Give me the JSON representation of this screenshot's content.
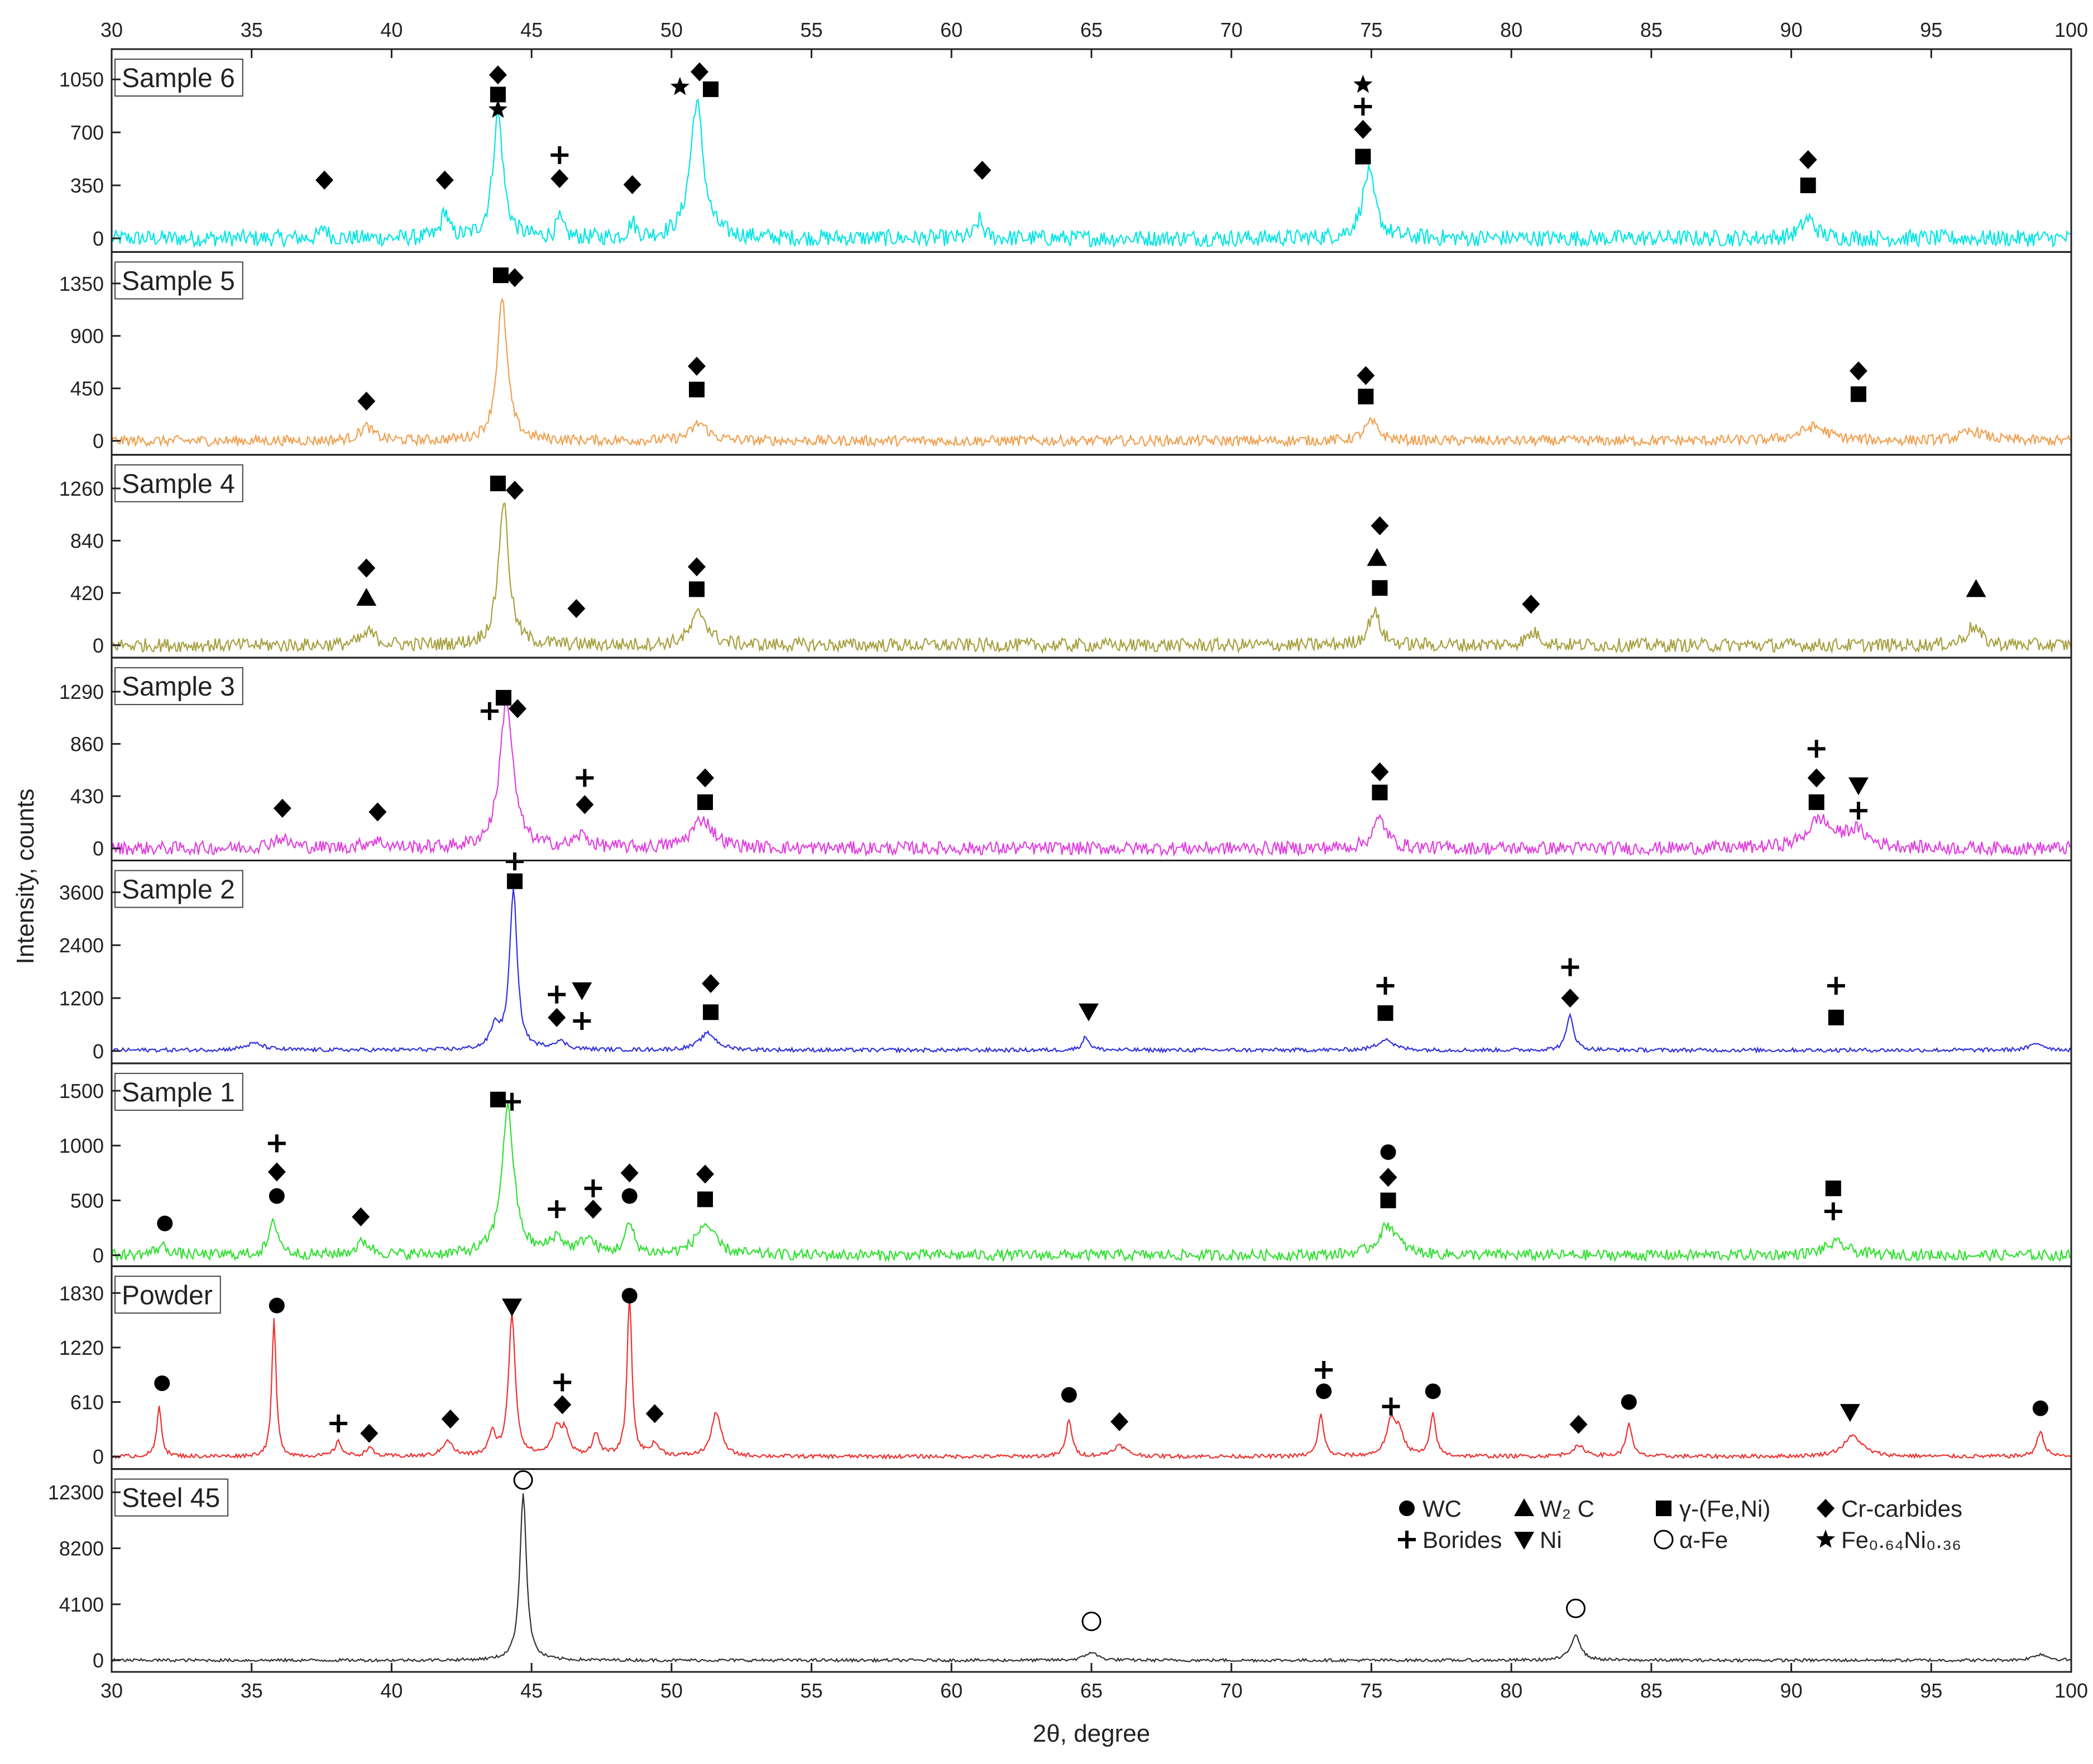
{
  "chart_data": {
    "type": "line",
    "xlabel": "2θ, degree",
    "ylabel": "Intensity, counts",
    "xlim": [
      30,
      100
    ],
    "xticks": [
      30,
      35,
      40,
      45,
      50,
      55,
      60,
      65,
      70,
      75,
      80,
      85,
      90,
      95,
      100
    ],
    "grid": false,
    "legend_location": "bottom panel, top-right",
    "legend": [
      {
        "symbol": "circle-filled",
        "label": "WC"
      },
      {
        "symbol": "triangle-up",
        "label": "W₂ C"
      },
      {
        "symbol": "square",
        "label": "γ-(Fe,Ni)"
      },
      {
        "symbol": "diamond",
        "label": "Cr-carbides"
      },
      {
        "symbol": "plus",
        "label": "Borides"
      },
      {
        "symbol": "triangle-down",
        "label": "Ni"
      },
      {
        "symbol": "circle-open",
        "label": "α-Fe"
      },
      {
        "symbol": "star",
        "label": "Fe₀.₆₄Ni₀.₃₆"
      }
    ],
    "panels": [
      {
        "name": "Sample 6",
        "color": "#00e5e5",
        "ylim": [
          -90,
          1250
        ],
        "yticks": [
          0,
          350,
          700,
          1050
        ],
        "noise": 55,
        "baseline": 0,
        "peaks": [
          [
            37.6,
            80,
            0.12
          ],
          [
            41.9,
            180,
            0.14
          ],
          [
            43.8,
            820,
            0.22
          ],
          [
            46.0,
            120,
            0.15
          ],
          [
            48.6,
            100,
            0.14
          ],
          [
            50.9,
            900,
            0.28
          ],
          [
            61.0,
            120,
            0.15
          ],
          [
            74.9,
            430,
            0.28
          ],
          [
            90.6,
            130,
            0.3
          ]
        ],
        "markers": [
          [
            37.6,
            385,
            "diamond"
          ],
          [
            41.9,
            385,
            "diamond"
          ],
          [
            46.0,
            395,
            "diamond"
          ],
          [
            46.0,
            550,
            "plus"
          ],
          [
            48.6,
            355,
            "diamond"
          ],
          [
            43.8,
            1080,
            "diamond"
          ],
          [
            43.8,
            950,
            "square"
          ],
          [
            43.8,
            850,
            "star"
          ],
          [
            50.3,
            1000,
            "star"
          ],
          [
            51.0,
            1100,
            "diamond"
          ],
          [
            51.4,
            985,
            "square"
          ],
          [
            61.1,
            450,
            "diamond"
          ],
          [
            74.7,
            1015,
            "star"
          ],
          [
            74.7,
            870,
            "plus"
          ],
          [
            74.7,
            720,
            "diamond"
          ],
          [
            74.7,
            540,
            "square"
          ],
          [
            90.6,
            520,
            "diamond"
          ],
          [
            90.6,
            350,
            "square"
          ]
        ]
      },
      {
        "name": "Sample 5",
        "color": "#f0a050",
        "ylim": [
          -120,
          1620
        ],
        "yticks": [
          0,
          450,
          900,
          1350
        ],
        "noise": 45,
        "baseline": 0,
        "peaks": [
          [
            39.1,
            120,
            0.3
          ],
          [
            43.95,
            1200,
            0.22
          ],
          [
            51.0,
            150,
            0.35
          ],
          [
            75.0,
            160,
            0.3
          ],
          [
            90.8,
            120,
            0.6
          ],
          [
            96.5,
            80,
            0.5
          ]
        ],
        "markers": [
          [
            39.1,
            340,
            "diamond"
          ],
          [
            43.9,
            1420,
            "square"
          ],
          [
            44.4,
            1400,
            "diamond"
          ],
          [
            50.9,
            640,
            "diamond"
          ],
          [
            50.9,
            440,
            "square"
          ],
          [
            74.8,
            560,
            "diamond"
          ],
          [
            74.8,
            380,
            "square"
          ],
          [
            92.4,
            600,
            "diamond"
          ],
          [
            92.4,
            400,
            "square"
          ]
        ]
      },
      {
        "name": "Sample 4",
        "color": "#a8a040",
        "ylim": [
          -100,
          1530
        ],
        "yticks": [
          0,
          420,
          840,
          1260
        ],
        "noise": 55,
        "baseline": 0,
        "peaks": [
          [
            39.2,
            100,
            0.3
          ],
          [
            44.0,
            1160,
            0.22
          ],
          [
            51.0,
            260,
            0.35
          ],
          [
            75.1,
            270,
            0.25
          ],
          [
            80.8,
            100,
            0.3
          ],
          [
            96.5,
            150,
            0.3
          ]
        ],
        "markers": [
          [
            39.1,
            620,
            "diamond"
          ],
          [
            39.1,
            380,
            "triangle-up"
          ],
          [
            43.8,
            1300,
            "square"
          ],
          [
            44.4,
            1245,
            "diamond"
          ],
          [
            46.6,
            295,
            "diamond"
          ],
          [
            50.9,
            630,
            "diamond"
          ],
          [
            50.9,
            450,
            "square"
          ],
          [
            75.3,
            960,
            "diamond"
          ],
          [
            75.2,
            700,
            "triangle-up"
          ],
          [
            75.3,
            460,
            "square"
          ],
          [
            80.7,
            330,
            "diamond"
          ],
          [
            96.6,
            450,
            "triangle-up"
          ]
        ]
      },
      {
        "name": "Sample 3",
        "color": "#e040e0",
        "ylim": [
          -100,
          1570
        ],
        "yticks": [
          0,
          430,
          860,
          1290
        ],
        "noise": 55,
        "baseline": 0,
        "peaks": [
          [
            36.0,
            80,
            0.4
          ],
          [
            39.4,
            60,
            0.4
          ],
          [
            44.1,
            1220,
            0.28
          ],
          [
            46.8,
            100,
            0.3
          ],
          [
            51.1,
            240,
            0.45
          ],
          [
            75.3,
            240,
            0.3
          ],
          [
            91.0,
            230,
            0.5
          ],
          [
            92.3,
            140,
            0.5
          ]
        ],
        "markers": [
          [
            36.1,
            330,
            "diamond"
          ],
          [
            39.5,
            300,
            "diamond"
          ],
          [
            43.5,
            1130,
            "plus"
          ],
          [
            44.0,
            1240,
            "square"
          ],
          [
            44.5,
            1150,
            "diamond"
          ],
          [
            46.9,
            580,
            "plus"
          ],
          [
            46.9,
            360,
            "diamond"
          ],
          [
            51.2,
            580,
            "diamond"
          ],
          [
            51.2,
            380,
            "square"
          ],
          [
            75.3,
            630,
            "diamond"
          ],
          [
            75.3,
            460,
            "square"
          ],
          [
            90.9,
            820,
            "plus"
          ],
          [
            90.9,
            580,
            "diamond"
          ],
          [
            90.9,
            380,
            "square"
          ],
          [
            92.4,
            520,
            "triangle-down"
          ],
          [
            92.4,
            310,
            "plus"
          ]
        ]
      },
      {
        "name": "Sample 2",
        "color": "#3030e0",
        "ylim": [
          -280,
          4320
        ],
        "yticks": [
          0,
          1200,
          2400,
          3600
        ],
        "noise": 45,
        "baseline": 20,
        "peaks": [
          [
            35.1,
            150,
            0.4
          ],
          [
            43.7,
            500,
            0.2
          ],
          [
            44.35,
            3600,
            0.16
          ],
          [
            46.0,
            180,
            0.3
          ],
          [
            51.3,
            380,
            0.35
          ],
          [
            64.8,
            300,
            0.15
          ],
          [
            75.5,
            260,
            0.3
          ],
          [
            82.1,
            800,
            0.15
          ],
          [
            98.8,
            150,
            0.3
          ]
        ],
        "markers": [
          [
            44.4,
            4300,
            "plus"
          ],
          [
            44.4,
            3850,
            "square"
          ],
          [
            45.9,
            1280,
            "plus"
          ],
          [
            45.9,
            760,
            "diamond"
          ],
          [
            46.8,
            1380,
            "triangle-down"
          ],
          [
            46.8,
            680,
            "plus"
          ],
          [
            51.4,
            1530,
            "diamond"
          ],
          [
            51.4,
            880,
            "square"
          ],
          [
            64.9,
            900,
            "triangle-down"
          ],
          [
            75.5,
            1480,
            "plus"
          ],
          [
            75.5,
            860,
            "square"
          ],
          [
            82.1,
            1900,
            "plus"
          ],
          [
            82.1,
            1200,
            "diamond"
          ],
          [
            91.6,
            1480,
            "plus"
          ],
          [
            91.6,
            760,
            "square"
          ]
        ]
      },
      {
        "name": "Sample 1",
        "color": "#30e030",
        "ylim": [
          -100,
          1750
        ],
        "yticks": [
          0,
          500,
          1000,
          1500
        ],
        "noise": 50,
        "baseline": 0,
        "peaks": [
          [
            31.8,
            80,
            0.3
          ],
          [
            35.8,
            300,
            0.2
          ],
          [
            39.0,
            120,
            0.3
          ],
          [
            44.15,
            1340,
            0.26
          ],
          [
            45.9,
            150,
            0.3
          ],
          [
            47.0,
            140,
            0.3
          ],
          [
            48.5,
            270,
            0.2
          ],
          [
            51.2,
            280,
            0.4
          ],
          [
            75.6,
            280,
            0.4
          ],
          [
            91.6,
            110,
            0.5
          ]
        ],
        "markers": [
          [
            31.9,
            290,
            "circle-filled"
          ],
          [
            35.9,
            1020,
            "plus"
          ],
          [
            35.9,
            760,
            "diamond"
          ],
          [
            35.9,
            540,
            "circle-filled"
          ],
          [
            38.9,
            350,
            "diamond"
          ],
          [
            43.8,
            1420,
            "square"
          ],
          [
            44.3,
            1400,
            "plus"
          ],
          [
            45.9,
            420,
            "plus"
          ],
          [
            47.2,
            610,
            "plus"
          ],
          [
            47.2,
            420,
            "diamond"
          ],
          [
            48.5,
            750,
            "diamond"
          ],
          [
            48.5,
            540,
            "circle-filled"
          ],
          [
            51.2,
            740,
            "diamond"
          ],
          [
            51.2,
            510,
            "square"
          ],
          [
            75.6,
            940,
            "circle-filled"
          ],
          [
            75.6,
            710,
            "diamond"
          ],
          [
            75.6,
            500,
            "square"
          ],
          [
            91.5,
            610,
            "square"
          ],
          [
            91.5,
            400,
            "plus"
          ]
        ]
      },
      {
        "name": "Powder",
        "color": "#ee3030",
        "ylim": [
          -140,
          2130
        ],
        "yticks": [
          0,
          610,
          1220,
          1830
        ],
        "noise": 22,
        "baseline": 0,
        "peaks": [
          [
            31.7,
            560,
            0.1
          ],
          [
            35.8,
            1550,
            0.09
          ],
          [
            38.1,
            160,
            0.15
          ],
          [
            39.2,
            100,
            0.15
          ],
          [
            42.0,
            180,
            0.2
          ],
          [
            43.6,
            240,
            0.15
          ],
          [
            44.3,
            1600,
            0.14
          ],
          [
            45.9,
            300,
            0.2
          ],
          [
            46.2,
            250,
            0.15
          ],
          [
            47.3,
            240,
            0.15
          ],
          [
            48.5,
            1800,
            0.1
          ],
          [
            49.4,
            130,
            0.2
          ],
          [
            51.6,
            500,
            0.2
          ],
          [
            64.2,
            420,
            0.12
          ],
          [
            66.0,
            120,
            0.3
          ],
          [
            73.2,
            470,
            0.12
          ],
          [
            75.7,
            360,
            0.2
          ],
          [
            76.0,
            250,
            0.2
          ],
          [
            77.2,
            470,
            0.12
          ],
          [
            82.4,
            110,
            0.3
          ],
          [
            84.2,
            380,
            0.12
          ],
          [
            92.2,
            230,
            0.4
          ],
          [
            98.9,
            280,
            0.15
          ]
        ],
        "markers": [
          [
            31.8,
            820,
            "circle-filled"
          ],
          [
            35.9,
            1690,
            "circle-filled"
          ],
          [
            38.1,
            370,
            "plus"
          ],
          [
            39.2,
            260,
            "diamond"
          ],
          [
            42.1,
            420,
            "diamond"
          ],
          [
            44.3,
            1680,
            "triangle-down"
          ],
          [
            46.1,
            830,
            "plus"
          ],
          [
            46.1,
            580,
            "diamond"
          ],
          [
            48.5,
            1800,
            "circle-filled"
          ],
          [
            49.4,
            480,
            "diamond"
          ],
          [
            64.2,
            690,
            "circle-filled"
          ],
          [
            66.0,
            390,
            "diamond"
          ],
          [
            73.3,
            970,
            "plus"
          ],
          [
            73.3,
            730,
            "circle-filled"
          ],
          [
            75.7,
            560,
            "plus"
          ],
          [
            77.2,
            730,
            "circle-filled"
          ],
          [
            82.4,
            360,
            "diamond"
          ],
          [
            84.2,
            610,
            "circle-filled"
          ],
          [
            92.1,
            500,
            "triangle-down"
          ],
          [
            98.9,
            540,
            "circle-filled"
          ]
        ]
      },
      {
        "name": "Steel 45",
        "color": "#333333",
        "ylim": [
          -850,
          14000
        ],
        "yticks": [
          0,
          4100,
          8200,
          12300
        ],
        "noise": 110,
        "baseline": 0,
        "peaks": [
          [
            44.7,
            12300,
            0.14
          ],
          [
            65.0,
            600,
            0.25
          ],
          [
            82.3,
            1900,
            0.2
          ],
          [
            98.9,
            450,
            0.3
          ]
        ],
        "markers": [
          [
            44.7,
            13200,
            "circle-open"
          ],
          [
            65.0,
            2850,
            "circle-open"
          ],
          [
            82.3,
            3800,
            "circle-open"
          ]
        ]
      }
    ]
  }
}
